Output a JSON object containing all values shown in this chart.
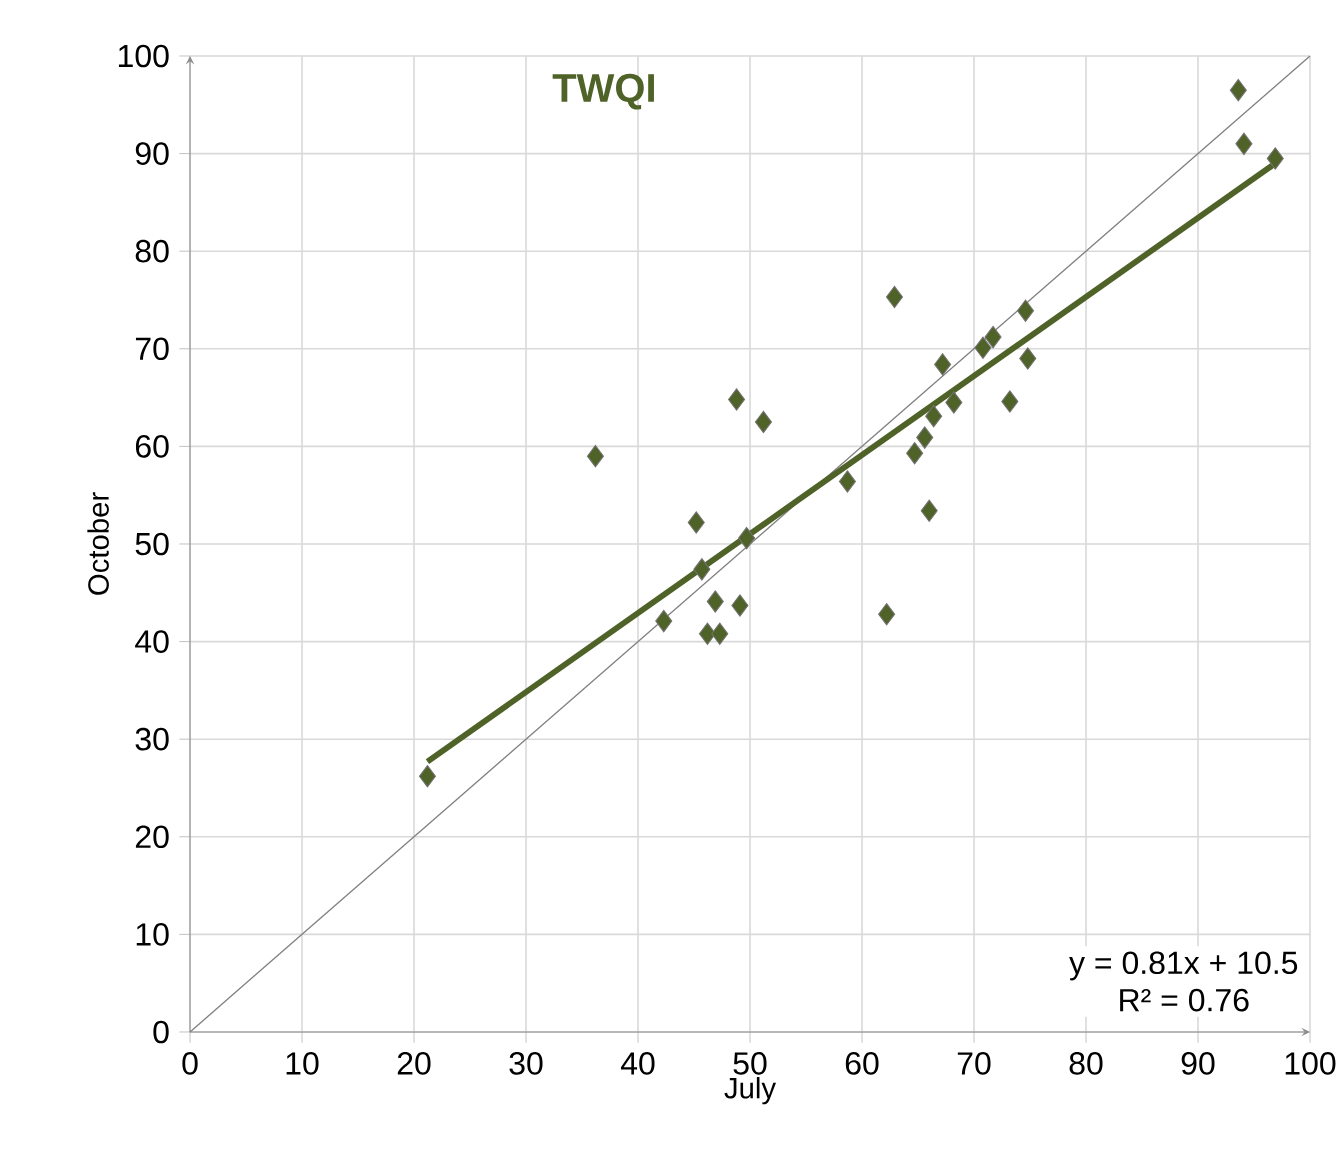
{
  "chart_data": {
    "type": "scatter",
    "title": "TWQI",
    "xlabel": "July",
    "ylabel": "October",
    "xlim": [
      0,
      100
    ],
    "ylim": [
      0,
      100
    ],
    "xticks": [
      0,
      10,
      20,
      30,
      40,
      50,
      60,
      70,
      80,
      90,
      100
    ],
    "yticks": [
      0,
      10,
      20,
      30,
      40,
      50,
      60,
      70,
      80,
      90,
      100
    ],
    "grid": true,
    "annotations": [
      "y = 0.81x + 10.5",
      "R² = 0.76"
    ],
    "series": [
      {
        "marker": "diamond",
        "color": "#4f6228",
        "x": [
          21.2,
          36.2,
          45.2,
          45.7,
          42.3,
          46.9,
          49.1,
          46.2,
          47.3,
          49.7,
          48.8,
          51.2,
          58.7,
          62.2,
          62.9,
          66.0,
          64.7,
          65.6,
          66.4,
          68.2,
          67.2,
          73.2,
          70.8,
          71.7,
          74.8,
          74.6,
          93.6,
          94.1,
          96.9
        ],
        "values": [
          26.2,
          59.0,
          52.2,
          47.4,
          42.1,
          44.1,
          43.7,
          40.8,
          40.8,
          50.6,
          64.8,
          62.5,
          56.4,
          42.8,
          75.3,
          53.4,
          59.3,
          60.9,
          63.1,
          64.5,
          68.4,
          64.6,
          70.1,
          71.2,
          69.0,
          73.9,
          96.5,
          91.0,
          89.5
        ]
      },
      {
        "type": "line",
        "color": "#808080",
        "x": [
          0,
          100
        ],
        "values": [
          0,
          100
        ]
      },
      {
        "type": "line",
        "color": "#4f6228",
        "x": [
          21.2,
          96.9
        ],
        "values": [
          27.7,
          89.0
        ]
      }
    ]
  }
}
